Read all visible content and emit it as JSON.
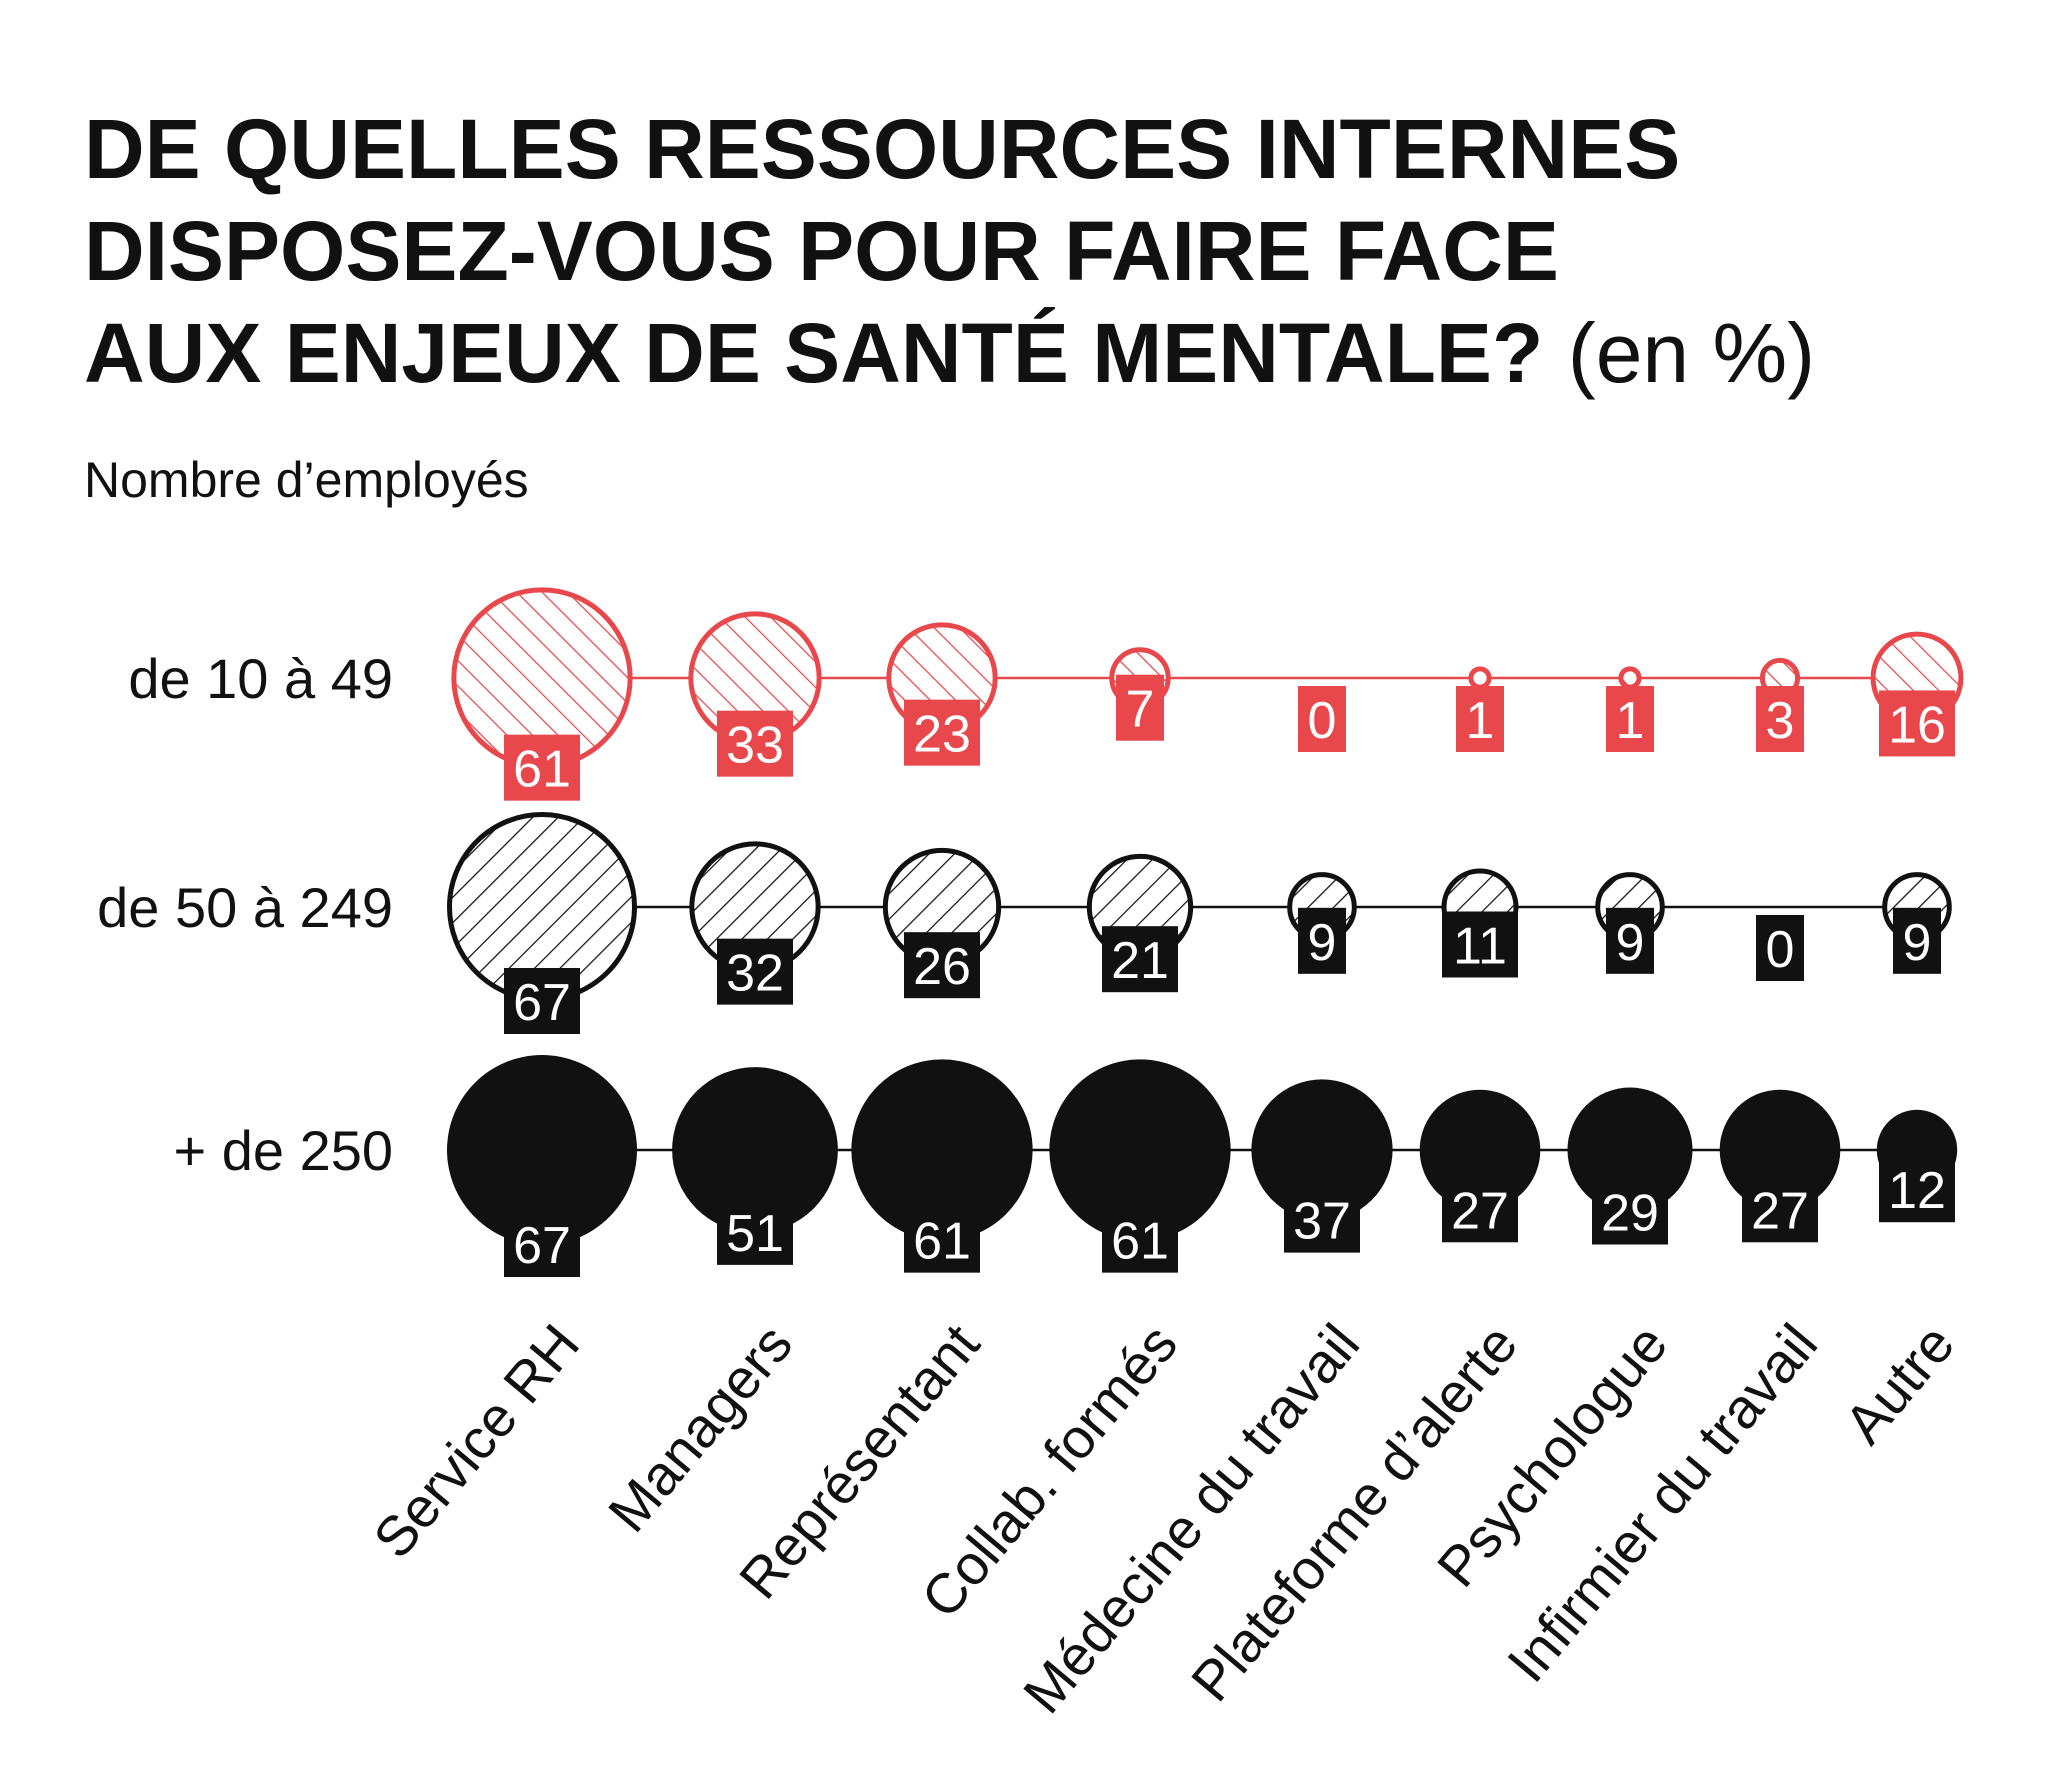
{
  "title": {
    "lines": [
      "DE QUELLES RESSOURCES INTERNES",
      "DISPOSEZ-VOUS POUR FAIRE FACE",
      "AUX ENJEUX DE SANTÉ MENTALE?"
    ],
    "unit": "(en %)"
  },
  "subtitle": "Nombre d’employés",
  "colors": {
    "red": "#e8484b",
    "black": "#111111"
  },
  "chart_data": {
    "type": "bubble-matrix",
    "title": "DE QUELLES RESSOURCES INTERNES DISPOSEZ-VOUS POUR FAIRE FACE AUX ENJEUX DE SANTÉ MENTALE? (en %)",
    "subtitle": "Nombre d’employés",
    "categories": [
      "Service RH",
      "Managers",
      "Représentant",
      "Collab. formés",
      "Médecine du travail",
      "Plateforme d’alerte",
      "Psychologue",
      "Infirmier du travail",
      "Autre"
    ],
    "series": [
      {
        "name": "de 10 à 49",
        "values": [
          61,
          33,
          23,
          7,
          0,
          1,
          1,
          3,
          16
        ],
        "style": "red-hatched"
      },
      {
        "name": "de 50 à 249",
        "values": [
          67,
          32,
          26,
          21,
          9,
          11,
          9,
          0,
          9
        ],
        "style": "black-hatched"
      },
      {
        "name": "+ de 250",
        "values": [
          67,
          51,
          61,
          61,
          37,
          27,
          29,
          27,
          12
        ],
        "style": "black-solid"
      }
    ]
  }
}
